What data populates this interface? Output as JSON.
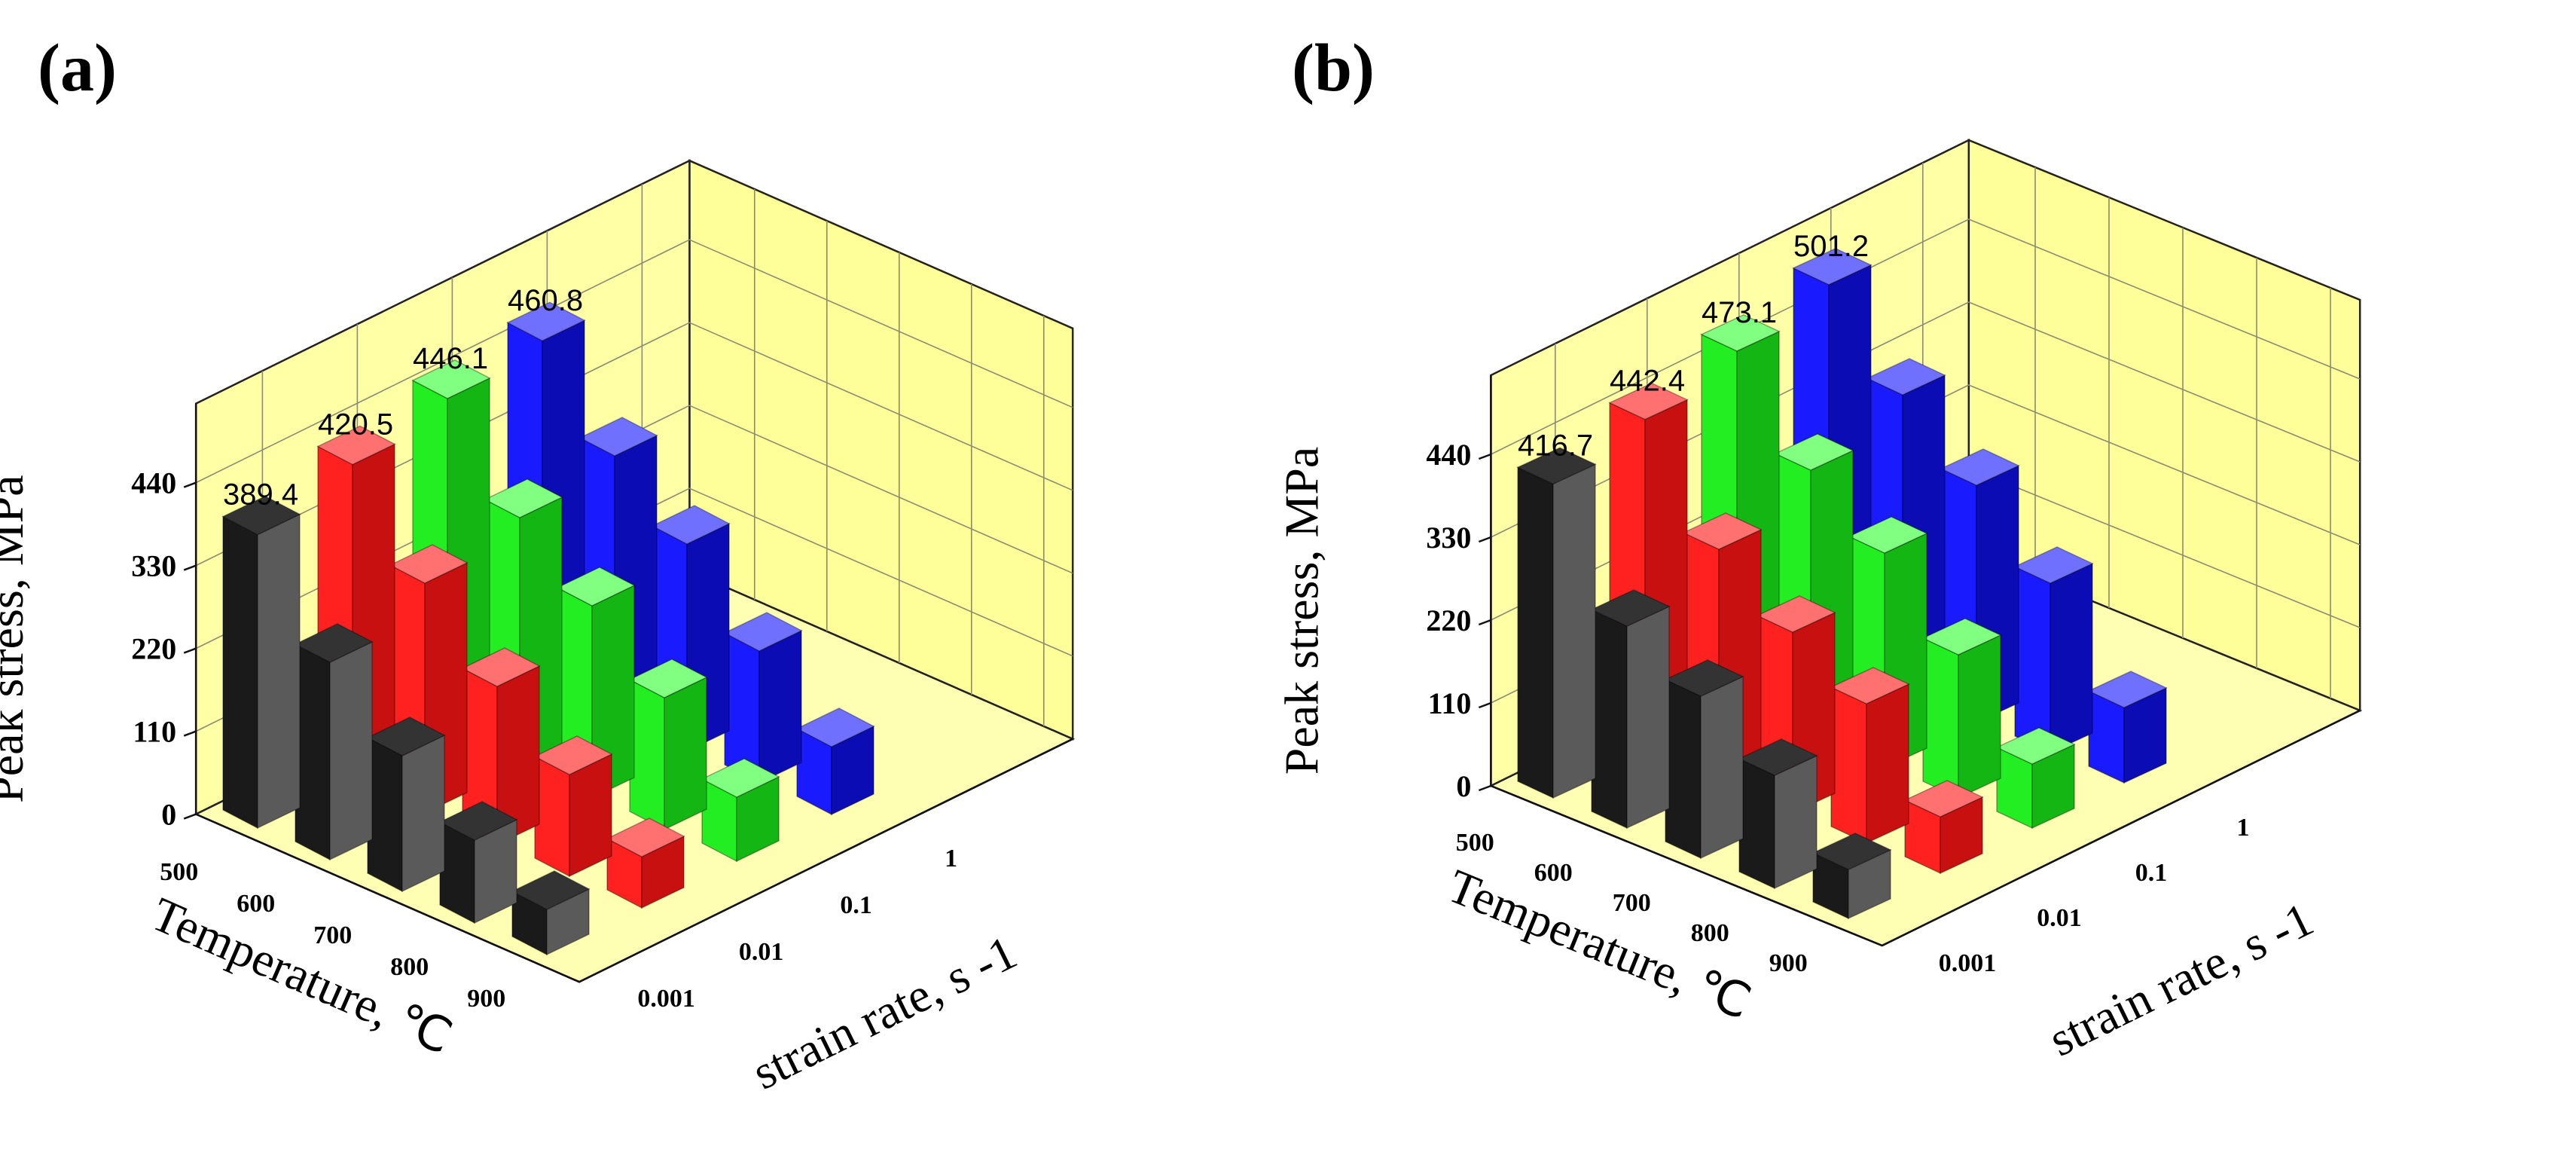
{
  "chart_data": [
    {
      "panel_label": "(a)",
      "type": "bar3d",
      "ylabel": "Peak stress, MPa",
      "xlabel": "Temperature, ℃",
      "zlabel": "strain rate, s -1",
      "y_ticks": [
        "0",
        "110",
        "220",
        "330",
        "440"
      ],
      "ylim": [
        0,
        545
      ],
      "temperatures": [
        "500",
        "600",
        "700",
        "800",
        "900"
      ],
      "strain_rates": [
        "0.001",
        "0.01",
        "0.1",
        "1"
      ],
      "series": [
        {
          "name": "0.001",
          "color": "#1a1a1a",
          "side_color": "#5a5a5a",
          "top_color": "#333333",
          "values": [
            389.4,
            262,
            180,
            110,
            60
          ]
        },
        {
          "name": "0.01",
          "color": "#ff2020",
          "side_color": "#c81010",
          "top_color": "#ff7070",
          "values": [
            420.5,
            305,
            210,
            135,
            68
          ]
        },
        {
          "name": "0.1",
          "color": "#22ee22",
          "side_color": "#14b614",
          "top_color": "#80ff80",
          "values": [
            446.1,
            330,
            255,
            175,
            85
          ]
        },
        {
          "name": "1",
          "color": "#1a1aff",
          "side_color": "#0c0cb4",
          "top_color": "#7070ff",
          "values": [
            460.8,
            350,
            275,
            175,
            90
          ]
        }
      ],
      "annotations": [
        "389.4",
        "420.5",
        "446.1",
        "460.8"
      ]
    },
    {
      "panel_label": "(b)",
      "type": "bar3d",
      "ylabel": "Peak stress, MPa",
      "xlabel": "Temperature, ℃",
      "zlabel": "strain rate, s -1",
      "y_ticks": [
        "0",
        "110",
        "220",
        "330",
        "440"
      ],
      "ylim": [
        0,
        545
      ],
      "temperatures": [
        "500",
        "600",
        "700",
        "800",
        "900"
      ],
      "strain_rates": [
        "0.001",
        "0.01",
        "0.1",
        "1"
      ],
      "series": [
        {
          "name": "0.001",
          "color": "#1a1a1a",
          "side_color": "#5a5a5a",
          "top_color": "#333333",
          "values": [
            416.7,
            268,
            215,
            150,
            65
          ]
        },
        {
          "name": "0.01",
          "color": "#ff2020",
          "side_color": "#c81010",
          "top_color": "#ff7070",
          "values": [
            442.4,
            310,
            240,
            185,
            75
          ]
        },
        {
          "name": "0.1",
          "color": "#22ee22",
          "side_color": "#14b614",
          "top_color": "#80ff80",
          "values": [
            473.1,
            355,
            285,
            190,
            85
          ]
        },
        {
          "name": "1",
          "color": "#1a1aff",
          "side_color": "#0c0cb4",
          "top_color": "#7070ff",
          "values": [
            501.2,
            395,
            315,
            225,
            100
          ]
        }
      ],
      "annotations": [
        "416.7",
        "442.4",
        "473.1",
        "501.2"
      ]
    }
  ]
}
